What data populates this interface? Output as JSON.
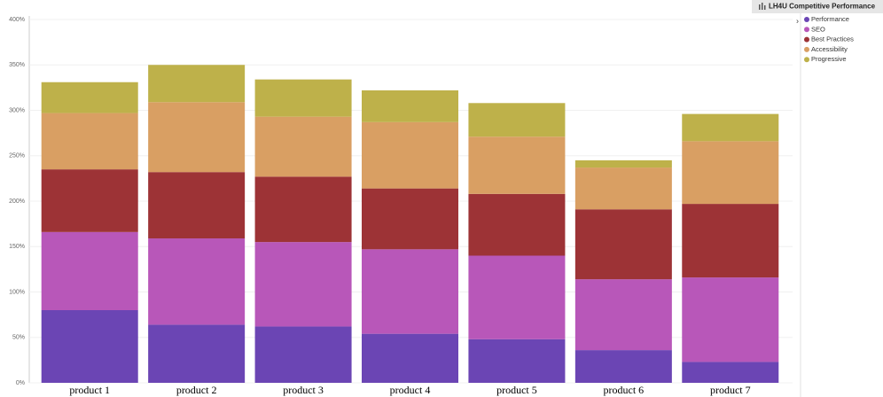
{
  "chart_data": {
    "type": "stacked_bar",
    "title": "LH4U Competitive Performance",
    "categories": [
      "product 1",
      "product 2",
      "product 3",
      "product 4",
      "product 5",
      "product 6",
      "product 7"
    ],
    "series": [
      {
        "name": "Performance",
        "color": "#6b45b4",
        "values": [
          80,
          64,
          62,
          54,
          48,
          36,
          23
        ]
      },
      {
        "name": "SEO",
        "color": "#b857b9",
        "values": [
          86,
          95,
          93,
          93,
          92,
          78,
          93
        ]
      },
      {
        "name": "Best Practices",
        "color": "#9d3336",
        "values": [
          69,
          73,
          72,
          67,
          68,
          77,
          81
        ]
      },
      {
        "name": "Accessibility",
        "color": "#d99f63",
        "values": [
          62,
          77,
          66,
          73,
          63,
          46,
          69
        ]
      },
      {
        "name": "Progressive",
        "color": "#beb14a",
        "values": [
          34,
          41,
          41,
          35,
          37,
          8,
          30
        ]
      }
    ],
    "ylim": [
      0,
      400
    ],
    "yticks": [
      {
        "value": 0,
        "label": "0%"
      },
      {
        "value": 50,
        "label": "50%"
      },
      {
        "value": 100,
        "label": "100%"
      },
      {
        "value": 150,
        "label": "150%"
      },
      {
        "value": 200,
        "label": "200%"
      },
      {
        "value": 250,
        "label": "250%"
      },
      {
        "value": 300,
        "label": "300%"
      },
      {
        "value": 350,
        "label": "350%"
      },
      {
        "value": 400,
        "label": "400%"
      }
    ],
    "grid": true,
    "legend": "top-right"
  }
}
